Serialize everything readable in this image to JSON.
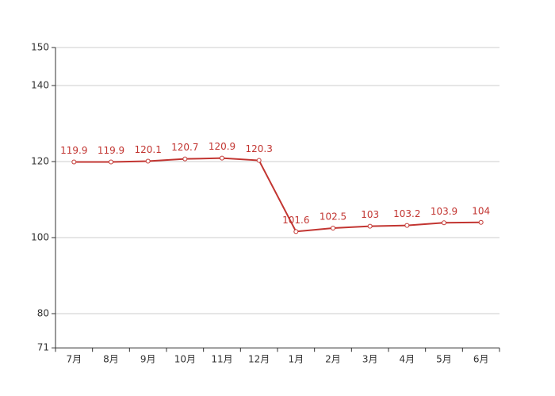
{
  "chart_data": {
    "type": "line",
    "categories": [
      "7月",
      "8月",
      "9月",
      "10月",
      "11月",
      "12月",
      "1月",
      "2月",
      "3月",
      "4月",
      "5月",
      "6月"
    ],
    "series": [
      {
        "color": "#c23531",
        "values": [
          119.9,
          119.9,
          120.1,
          120.7,
          120.9,
          120.3,
          101.6,
          102.5,
          103,
          103.2,
          103.9,
          104
        ]
      }
    ],
    "ylim": [
      71,
      150
    ],
    "yticks": [
      71,
      80,
      100,
      120,
      140,
      150
    ],
    "grid": true
  }
}
